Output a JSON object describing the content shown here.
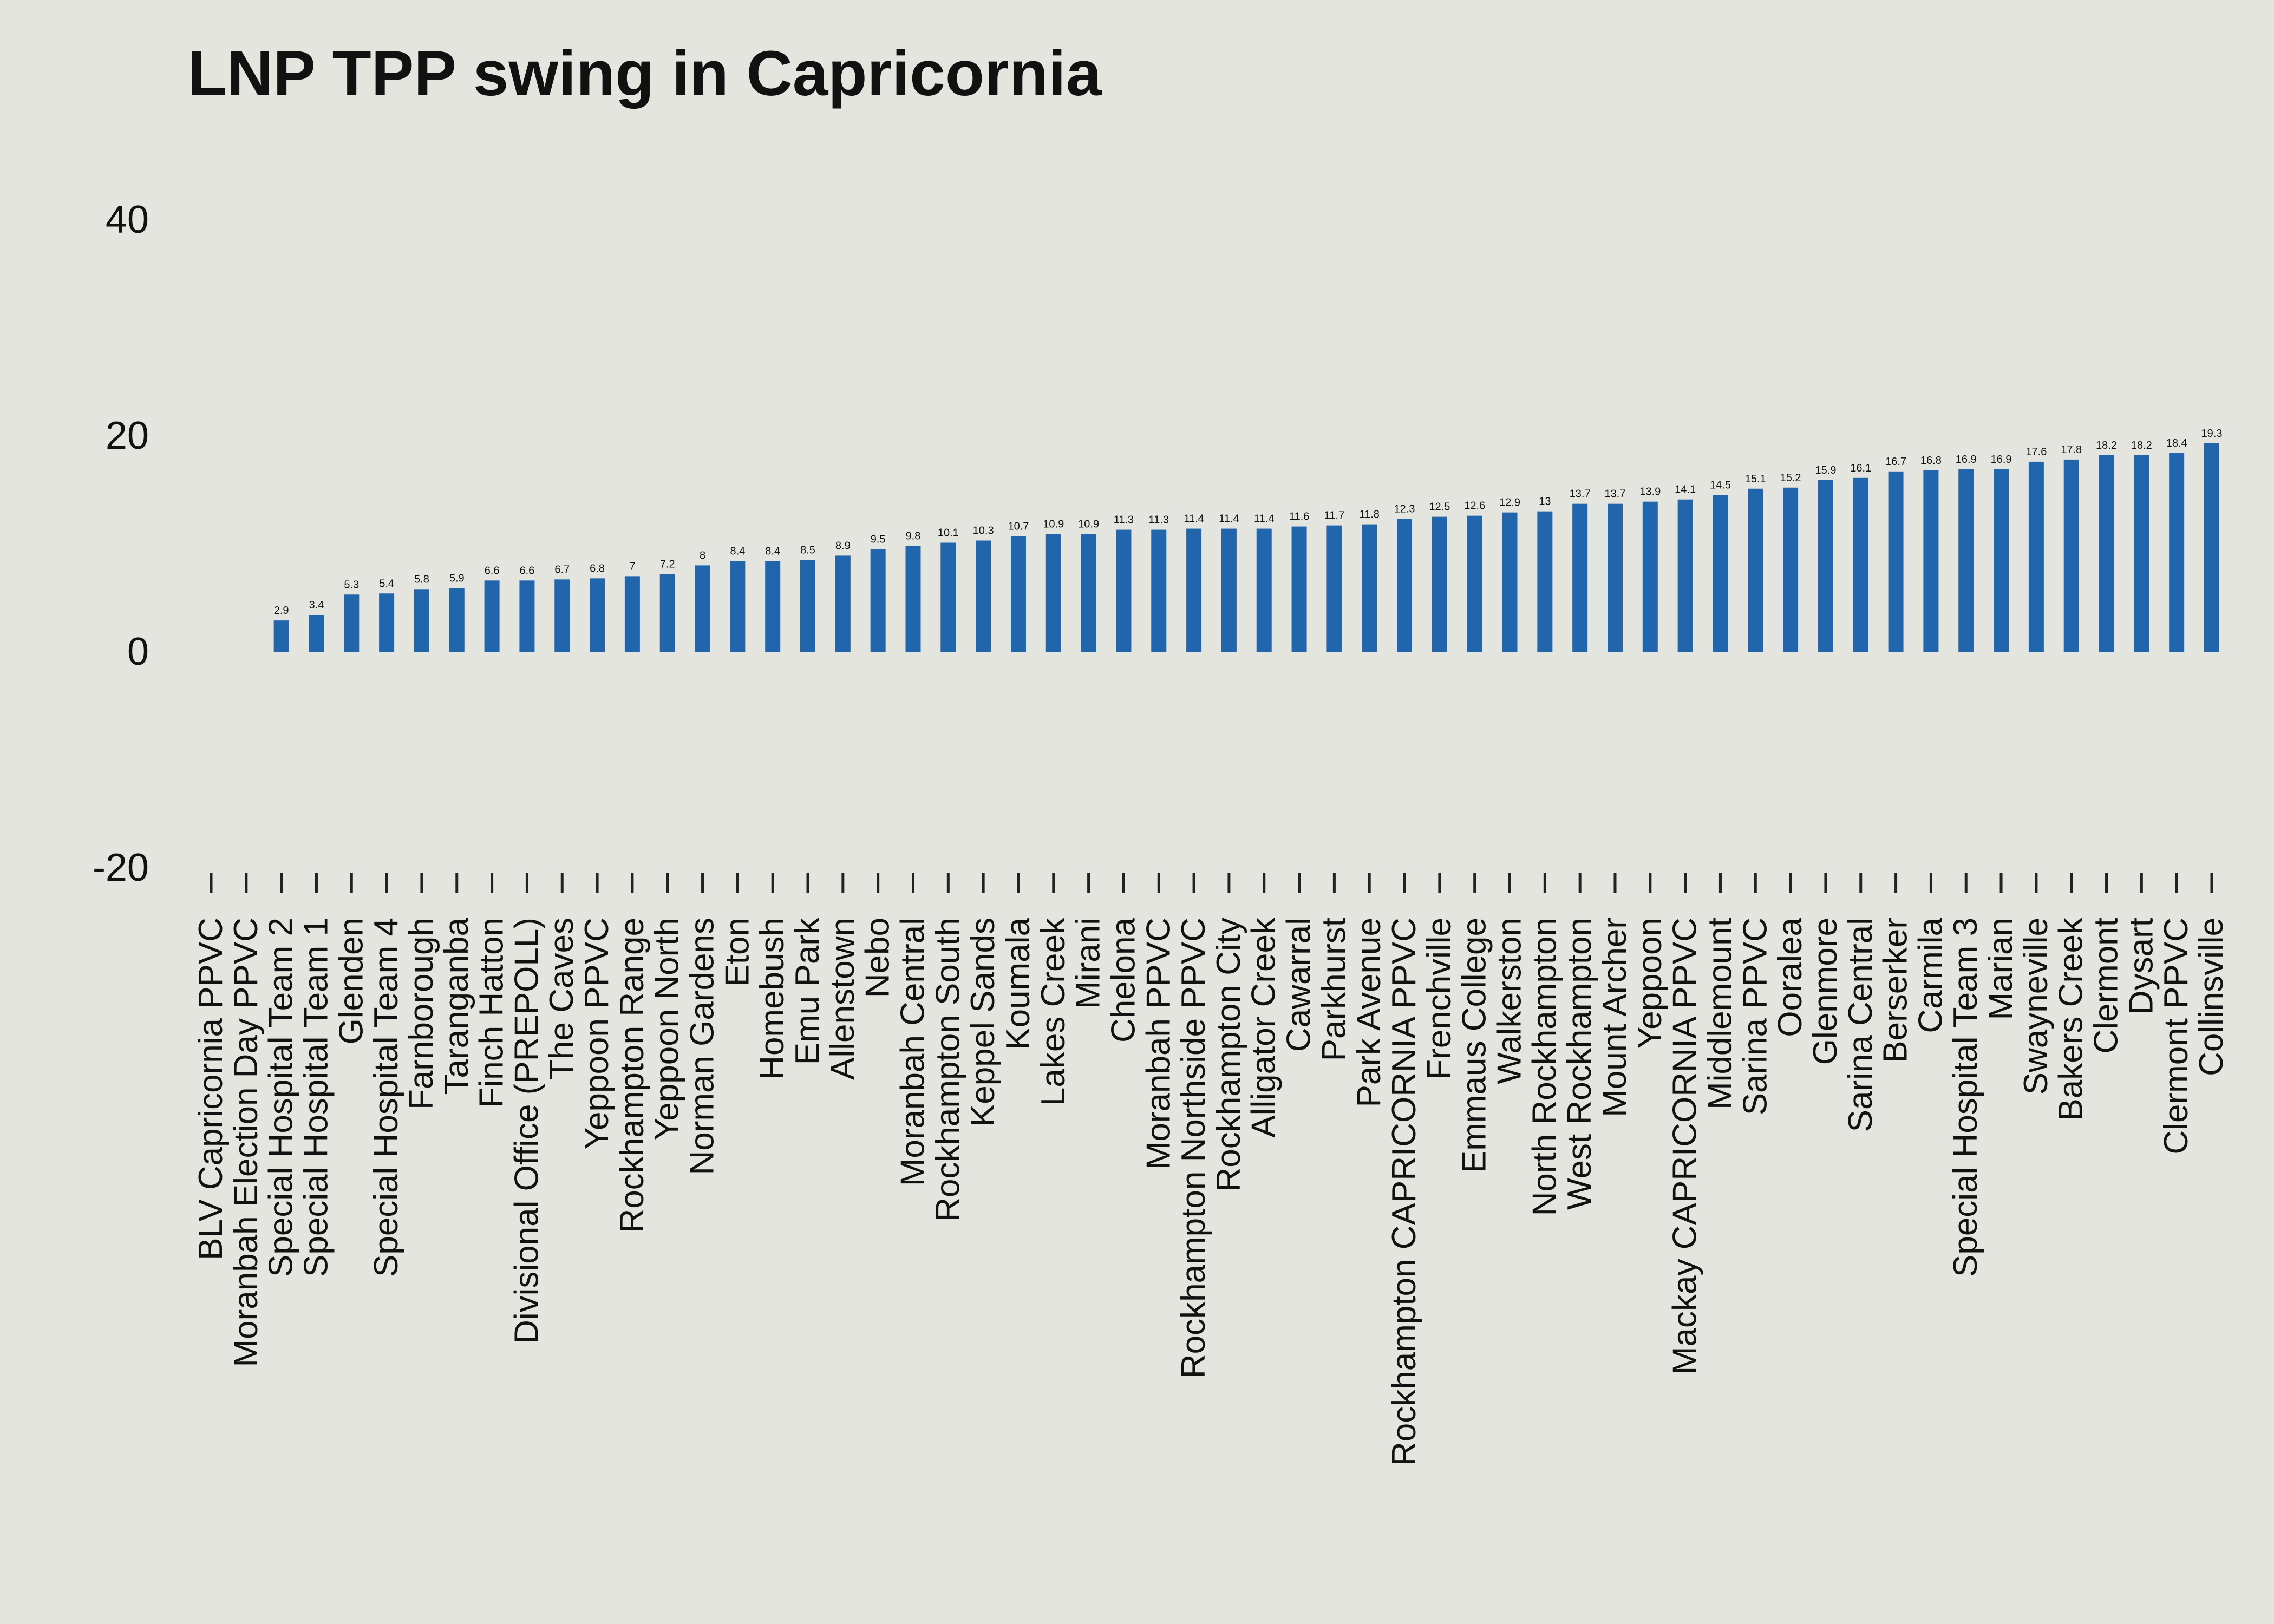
{
  "chart_data": {
    "type": "bar",
    "title": "LNP TPP swing in Capricornia",
    "xlabel": "",
    "ylabel": "",
    "ylim": [
      -20,
      40
    ],
    "yticks": [
      -20,
      0,
      20,
      40
    ],
    "grid": false,
    "legend": "none",
    "bar_color": "#2166ac",
    "background_color": "#e5e5e0",
    "categories": [
      "BLV Capricornia PPVC",
      "Moranbah Election Day PPVC",
      "Special Hospital Team 2",
      "Special Hospital Team 1",
      "Glenden",
      "Special Hospital Team 4",
      "Farnborough",
      "Taranganba",
      "Finch Hatton",
      "Divisional Office (PREPOLL)",
      "The Caves",
      "Yeppoon PPVC",
      "Rockhampton Range",
      "Yeppoon North",
      "Norman Gardens",
      "Eton",
      "Homebush",
      "Emu Park",
      "Allenstown",
      "Nebo",
      "Moranbah Central",
      "Rockhampton South",
      "Keppel Sands",
      "Koumala",
      "Lakes Creek",
      "Mirani",
      "Chelona",
      "Moranbah PPVC",
      "Rockhampton Northside PPVC",
      "Rockhampton City",
      "Alligator Creek",
      "Cawarral",
      "Parkhurst",
      "Park Avenue",
      "Rockhampton CAPRICORNIA PPVC",
      "Frenchville",
      "Emmaus College",
      "Walkerston",
      "North Rockhampton",
      "West Rockhampton",
      "Mount Archer",
      "Yeppoon",
      "Mackay CAPRICORNIA PPVC",
      "Middlemount",
      "Sarina PPVC",
      "Ooralea",
      "Glenmore",
      "Sarina Central",
      "Berserker",
      "Carmila",
      "Special Hospital Team 3",
      "Marian",
      "Swayneville",
      "Bakers Creek",
      "Clermont",
      "Dysart",
      "Clermont PPVC",
      "Collinsville"
    ],
    "values": [
      null,
      null,
      2.9,
      3.4,
      5.3,
      5.4,
      5.8,
      5.9,
      6.6,
      6.6,
      6.7,
      6.8,
      7,
      7.2,
      8,
      8.4,
      8.4,
      8.5,
      8.9,
      9.5,
      9.8,
      10.1,
      10.3,
      10.7,
      10.9,
      10.9,
      11.3,
      11.3,
      11.4,
      11.4,
      11.4,
      11.6,
      11.7,
      11.8,
      12.3,
      12.5,
      12.6,
      12.9,
      13,
      13.7,
      13.7,
      13.9,
      14.1,
      14.5,
      15.1,
      15.2,
      15.9,
      16.1,
      16.7,
      16.8,
      16.9,
      16.9,
      17.6,
      17.8,
      18.2,
      18.2,
      18.4,
      19.3
    ],
    "data_labels": [
      "",
      "",
      "2.9",
      "3.4",
      "5.3",
      "5.4",
      "5.8",
      "5.9",
      "6.6",
      "6.6",
      "6.7",
      "6.8",
      "7",
      "7.2",
      "8",
      "8.4",
      "8.4",
      "8.5",
      "8.9",
      "9.5",
      "9.8",
      "10.1",
      "10.3",
      "10.7",
      "10.9",
      "10.9",
      "11.3",
      "11.3",
      "11.4",
      "11.4",
      "11.4",
      "11.6",
      "11.7",
      "11.8",
      "12.3",
      "12.5",
      "12.6",
      "12.9",
      "13",
      "13.7",
      "13.7",
      "13.9",
      "14.1",
      "14.5",
      "15.1",
      "15.2",
      "15.9",
      "16.1",
      "16.7",
      "16.8",
      "16.9",
      "16.9",
      "17.6",
      "17.8",
      "18.2",
      "18.2",
      "18.4",
      "19.3"
    ]
  }
}
